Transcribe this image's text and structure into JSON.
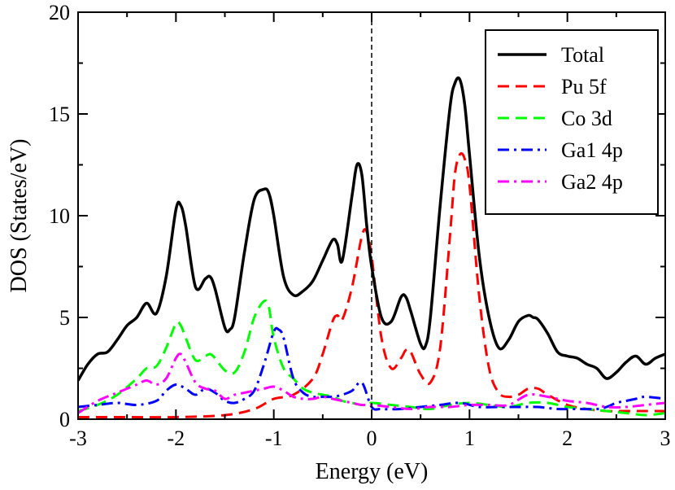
{
  "chart_data": {
    "type": "line",
    "title": "",
    "xlabel": "Energy (eV)",
    "ylabel": "DOS (States/eV)",
    "xlim": [
      -3,
      3
    ],
    "ylim": [
      0,
      20
    ],
    "x_ticks": [
      -3,
      -2,
      -1,
      0,
      1,
      2,
      3
    ],
    "y_ticks": [
      0,
      5,
      10,
      15,
      20
    ],
    "x_tick_labels": [
      "-3",
      "-2",
      "-1",
      "0",
      "1",
      "2",
      "3"
    ],
    "y_tick_labels": [
      "0",
      "5",
      "10",
      "15",
      "20"
    ],
    "grid": false,
    "legend_position": "top-right",
    "fermi_level": 0,
    "series": [
      {
        "name": "Total",
        "color": "#000000",
        "dash": "solid",
        "x": [
          -3.0,
          -2.9,
          -2.8,
          -2.7,
          -2.6,
          -2.5,
          -2.4,
          -2.3,
          -2.2,
          -2.1,
          -2.0,
          -1.95,
          -1.9,
          -1.8,
          -1.7,
          -1.65,
          -1.6,
          -1.5,
          -1.45,
          -1.4,
          -1.3,
          -1.2,
          -1.1,
          -1.05,
          -1.0,
          -0.9,
          -0.8,
          -0.7,
          -0.6,
          -0.5,
          -0.4,
          -0.35,
          -0.3,
          -0.2,
          -0.15,
          -0.1,
          -0.05,
          0.0,
          0.1,
          0.2,
          0.3,
          0.35,
          0.4,
          0.5,
          0.55,
          0.6,
          0.7,
          0.8,
          0.85,
          0.9,
          0.95,
          1.0,
          1.1,
          1.2,
          1.3,
          1.4,
          1.5,
          1.6,
          1.65,
          1.7,
          1.8,
          1.9,
          2.0,
          2.1,
          2.2,
          2.3,
          2.4,
          2.5,
          2.6,
          2.7,
          2.8,
          2.9,
          3.0
        ],
        "values": [
          1.9,
          2.7,
          3.2,
          3.3,
          3.9,
          4.6,
          5.0,
          5.7,
          5.2,
          7.0,
          10.3,
          10.5,
          9.5,
          6.5,
          6.9,
          7.0,
          6.4,
          4.5,
          4.4,
          5.0,
          8.2,
          10.8,
          11.3,
          11.1,
          10.0,
          7.0,
          6.1,
          6.3,
          6.8,
          7.8,
          8.8,
          8.6,
          7.8,
          11.0,
          12.5,
          12.0,
          9.5,
          7.5,
          5.0,
          4.8,
          6.0,
          6.0,
          5.3,
          3.7,
          3.6,
          5.0,
          10.5,
          15.3,
          16.5,
          16.7,
          15.5,
          13.0,
          8.0,
          5.0,
          3.5,
          3.9,
          4.8,
          5.1,
          5.0,
          4.9,
          4.2,
          3.3,
          3.1,
          3.0,
          2.7,
          2.5,
          2.0,
          2.3,
          2.8,
          3.1,
          2.7,
          3.0,
          3.2
        ]
      },
      {
        "name": "Pu 5f",
        "color": "#ff0000",
        "dash": "dashed",
        "x": [
          -3.0,
          -2.5,
          -2.0,
          -1.5,
          -1.2,
          -1.0,
          -0.8,
          -0.6,
          -0.5,
          -0.4,
          -0.35,
          -0.3,
          -0.2,
          -0.1,
          -0.05,
          0.0,
          0.1,
          0.2,
          0.3,
          0.35,
          0.4,
          0.5,
          0.6,
          0.7,
          0.8,
          0.85,
          0.9,
          0.95,
          1.0,
          1.1,
          1.2,
          1.3,
          1.4,
          1.5,
          1.6,
          1.7,
          1.8,
          2.0,
          2.2,
          2.4,
          2.6,
          2.8,
          3.0
        ],
        "values": [
          0.1,
          0.1,
          0.1,
          0.2,
          0.5,
          1.0,
          1.2,
          2.0,
          3.2,
          4.8,
          5.1,
          4.9,
          6.5,
          9.0,
          9.2,
          8.0,
          4.0,
          2.5,
          3.0,
          3.4,
          3.3,
          2.2,
          1.8,
          3.5,
          9.0,
          12.0,
          13.0,
          12.8,
          11.5,
          6.0,
          2.5,
          1.3,
          1.1,
          1.2,
          1.5,
          1.5,
          1.2,
          0.7,
          0.5,
          0.4,
          0.4,
          0.4,
          0.4
        ]
      },
      {
        "name": "Co 3d",
        "color": "#00ff00",
        "dash": "dashed",
        "x": [
          -3.0,
          -2.8,
          -2.6,
          -2.4,
          -2.3,
          -2.2,
          -2.1,
          -2.0,
          -1.95,
          -1.9,
          -1.8,
          -1.7,
          -1.65,
          -1.6,
          -1.5,
          -1.4,
          -1.3,
          -1.2,
          -1.1,
          -1.05,
          -1.0,
          -0.9,
          -0.8,
          -0.7,
          -0.6,
          -0.5,
          -0.4,
          -0.3,
          -0.2,
          -0.1,
          0.0,
          0.2,
          0.4,
          0.6,
          0.8,
          1.0,
          1.2,
          1.4,
          1.6,
          1.8,
          2.0,
          2.2,
          2.4,
          2.6,
          2.8,
          3.0
        ],
        "values": [
          0.4,
          0.7,
          1.2,
          2.0,
          2.5,
          2.6,
          3.5,
          4.7,
          4.6,
          4.0,
          2.9,
          3.1,
          3.2,
          3.0,
          2.4,
          2.3,
          3.3,
          5.0,
          5.8,
          5.5,
          4.0,
          2.5,
          2.0,
          1.5,
          1.3,
          1.2,
          1.1,
          0.9,
          0.8,
          0.7,
          0.8,
          0.7,
          0.6,
          0.5,
          0.7,
          0.8,
          0.7,
          0.6,
          0.8,
          0.8,
          0.6,
          0.5,
          0.4,
          0.3,
          0.2,
          0.3
        ]
      },
      {
        "name": "Ga1 4p",
        "color": "#0000ff",
        "dash": "dashdot",
        "x": [
          -3.0,
          -2.8,
          -2.6,
          -2.4,
          -2.2,
          -2.1,
          -2.0,
          -1.9,
          -1.8,
          -1.7,
          -1.6,
          -1.5,
          -1.4,
          -1.3,
          -1.2,
          -1.1,
          -1.0,
          -0.95,
          -0.9,
          -0.8,
          -0.7,
          -0.6,
          -0.5,
          -0.4,
          -0.3,
          -0.2,
          -0.1,
          0.0,
          0.1,
          0.3,
          0.5,
          0.7,
          0.9,
          1.1,
          1.3,
          1.5,
          1.7,
          1.9,
          2.1,
          2.3,
          2.4,
          2.5,
          2.6,
          2.7,
          2.8,
          3.0
        ],
        "values": [
          0.6,
          0.7,
          0.8,
          0.7,
          0.9,
          1.4,
          1.7,
          1.5,
          1.2,
          1.5,
          1.3,
          0.9,
          0.8,
          1.0,
          1.4,
          2.7,
          4.3,
          4.4,
          4.0,
          2.0,
          1.3,
          1.1,
          1.1,
          1.1,
          1.2,
          1.4,
          1.8,
          0.6,
          0.5,
          0.5,
          0.6,
          0.7,
          0.8,
          0.6,
          0.6,
          0.6,
          0.6,
          0.5,
          0.5,
          0.5,
          0.6,
          0.8,
          0.9,
          1.0,
          1.1,
          1.0
        ]
      },
      {
        "name": "Ga2 4p",
        "color": "#ff00ff",
        "dash": "dashdot",
        "x": [
          -3.0,
          -2.8,
          -2.6,
          -2.4,
          -2.3,
          -2.2,
          -2.1,
          -2.0,
          -1.95,
          -1.9,
          -1.8,
          -1.7,
          -1.6,
          -1.5,
          -1.4,
          -1.3,
          -1.2,
          -1.1,
          -1.0,
          -0.9,
          -0.8,
          -0.7,
          -0.6,
          -0.5,
          -0.4,
          -0.3,
          -0.2,
          -0.1,
          0.0,
          0.2,
          0.4,
          0.6,
          0.8,
          1.0,
          1.2,
          1.4,
          1.6,
          1.8,
          2.0,
          2.2,
          2.4,
          2.6,
          2.8,
          3.0
        ],
        "values": [
          0.3,
          0.9,
          1.3,
          1.7,
          1.9,
          1.7,
          2.0,
          3.0,
          3.2,
          2.8,
          1.8,
          1.5,
          1.4,
          1.0,
          1.2,
          1.3,
          1.4,
          1.5,
          1.6,
          1.4,
          1.1,
          1.0,
          1.0,
          1.1,
          1.0,
          0.9,
          0.8,
          0.7,
          0.7,
          0.6,
          0.5,
          0.6,
          0.6,
          0.7,
          0.7,
          0.7,
          1.2,
          1.1,
          0.9,
          0.8,
          0.6,
          0.6,
          0.7,
          0.8
        ]
      }
    ]
  }
}
